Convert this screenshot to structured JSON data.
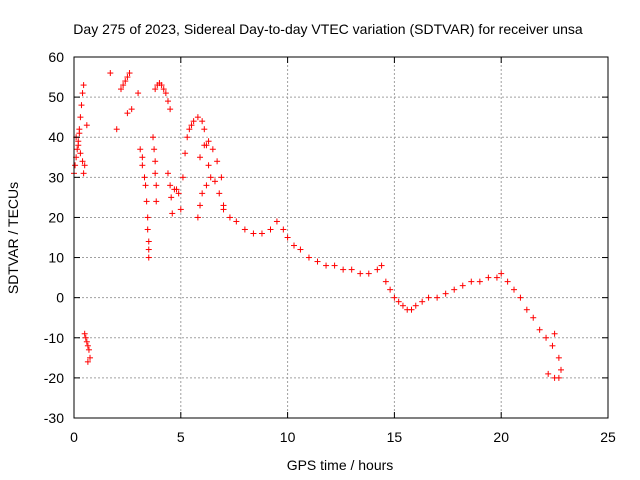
{
  "chart_data": {
    "type": "scatter",
    "title": "Day 275 of 2023, Sidereal Day-to-day VTEC variation (SDTVAR) for receiver unsa",
    "xlabel": "GPS time / hours",
    "ylabel": "SDTVAR / TECUs",
    "xlim": [
      0,
      25
    ],
    "ylim": [
      -30,
      60
    ],
    "xticks": [
      0,
      5,
      10,
      15,
      20,
      25
    ],
    "yticks": [
      -30,
      -20,
      -10,
      0,
      10,
      20,
      30,
      40,
      50,
      60
    ],
    "grid": true,
    "marker": "+",
    "color": "#ff0000",
    "series": [
      {
        "name": "SDTVAR",
        "points": [
          [
            0.0,
            31
          ],
          [
            0.05,
            33
          ],
          [
            0.1,
            35
          ],
          [
            0.15,
            37
          ],
          [
            0.2,
            39
          ],
          [
            0.25,
            42
          ],
          [
            0.3,
            45
          ],
          [
            0.35,
            48
          ],
          [
            0.4,
            51
          ],
          [
            0.45,
            53
          ],
          [
            0.1,
            40
          ],
          [
            0.2,
            38
          ],
          [
            0.3,
            36
          ],
          [
            0.4,
            34
          ],
          [
            0.45,
            31
          ],
          [
            0.5,
            33
          ],
          [
            0.25,
            41
          ],
          [
            0.5,
            -9
          ],
          [
            0.55,
            -10
          ],
          [
            0.6,
            -11
          ],
          [
            0.65,
            -12
          ],
          [
            0.7,
            -13
          ],
          [
            0.75,
            -15
          ],
          [
            0.65,
            -16
          ],
          [
            0.6,
            43
          ],
          [
            1.7,
            56
          ],
          [
            2.0,
            42
          ],
          [
            2.2,
            52
          ],
          [
            2.3,
            53
          ],
          [
            2.4,
            54
          ],
          [
            2.5,
            55
          ],
          [
            2.6,
            56
          ],
          [
            2.7,
            47
          ],
          [
            2.5,
            46
          ],
          [
            3.0,
            51
          ],
          [
            3.1,
            37
          ],
          [
            3.2,
            35
          ],
          [
            3.2,
            33
          ],
          [
            3.3,
            30
          ],
          [
            3.35,
            28
          ],
          [
            3.4,
            24
          ],
          [
            3.45,
            20
          ],
          [
            3.45,
            17
          ],
          [
            3.5,
            14
          ],
          [
            3.5,
            12
          ],
          [
            3.5,
            10
          ],
          [
            3.7,
            40
          ],
          [
            3.75,
            37
          ],
          [
            3.8,
            34
          ],
          [
            3.8,
            31
          ],
          [
            3.85,
            28
          ],
          [
            3.85,
            24
          ],
          [
            3.8,
            52
          ],
          [
            3.9,
            53
          ],
          [
            4.0,
            53.5
          ],
          [
            4.1,
            53
          ],
          [
            4.2,
            52
          ],
          [
            4.3,
            51
          ],
          [
            4.4,
            49
          ],
          [
            4.5,
            47
          ],
          [
            4.4,
            31
          ],
          [
            4.5,
            28
          ],
          [
            4.55,
            25
          ],
          [
            4.6,
            21
          ],
          [
            4.7,
            27
          ],
          [
            4.8,
            27
          ],
          [
            4.9,
            26
          ],
          [
            5.0,
            22
          ],
          [
            5.1,
            30
          ],
          [
            5.2,
            36
          ],
          [
            5.3,
            40
          ],
          [
            5.4,
            42
          ],
          [
            5.5,
            43
          ],
          [
            5.6,
            44
          ],
          [
            5.8,
            45
          ],
          [
            6.0,
            44
          ],
          [
            6.1,
            42
          ],
          [
            6.2,
            38
          ],
          [
            6.3,
            33
          ],
          [
            5.8,
            20
          ],
          [
            5.9,
            23
          ],
          [
            6.0,
            26
          ],
          [
            6.2,
            28
          ],
          [
            6.4,
            30
          ],
          [
            6.6,
            29
          ],
          [
            6.8,
            26
          ],
          [
            7.0,
            23
          ],
          [
            5.9,
            35
          ],
          [
            6.1,
            38
          ],
          [
            6.3,
            39
          ],
          [
            6.5,
            37
          ],
          [
            6.7,
            34
          ],
          [
            6.9,
            30
          ],
          [
            7.0,
            22
          ],
          [
            7.3,
            20
          ],
          [
            7.6,
            19
          ],
          [
            8.0,
            17
          ],
          [
            8.4,
            16
          ],
          [
            8.8,
            16
          ],
          [
            9.2,
            17
          ],
          [
            9.5,
            19
          ],
          [
            9.8,
            17
          ],
          [
            10.0,
            15
          ],
          [
            10.3,
            13
          ],
          [
            10.6,
            12
          ],
          [
            11.0,
            10
          ],
          [
            11.4,
            9
          ],
          [
            11.8,
            8
          ],
          [
            12.2,
            8
          ],
          [
            12.6,
            7
          ],
          [
            13.0,
            7
          ],
          [
            13.4,
            6
          ],
          [
            13.8,
            6
          ],
          [
            14.2,
            7
          ],
          [
            14.4,
            8
          ],
          [
            14.6,
            4
          ],
          [
            14.8,
            2
          ],
          [
            15.0,
            0
          ],
          [
            15.2,
            -1
          ],
          [
            15.4,
            -2
          ],
          [
            15.6,
            -3
          ],
          [
            15.8,
            -3
          ],
          [
            16.0,
            -2
          ],
          [
            16.3,
            -1
          ],
          [
            16.6,
            0
          ],
          [
            17.0,
            0
          ],
          [
            17.4,
            1
          ],
          [
            17.8,
            2
          ],
          [
            18.2,
            3
          ],
          [
            18.6,
            4
          ],
          [
            19.0,
            4
          ],
          [
            19.4,
            5
          ],
          [
            19.8,
            5
          ],
          [
            20.0,
            6
          ],
          [
            20.3,
            4
          ],
          [
            20.6,
            2
          ],
          [
            20.9,
            0
          ],
          [
            21.2,
            -3
          ],
          [
            21.5,
            -5
          ],
          [
            21.8,
            -8
          ],
          [
            22.1,
            -10
          ],
          [
            22.4,
            -12
          ],
          [
            22.7,
            -15
          ],
          [
            22.8,
            -18
          ],
          [
            22.5,
            -9
          ],
          [
            22.2,
            -19
          ],
          [
            22.5,
            -20
          ],
          [
            22.7,
            -20
          ]
        ]
      }
    ]
  }
}
